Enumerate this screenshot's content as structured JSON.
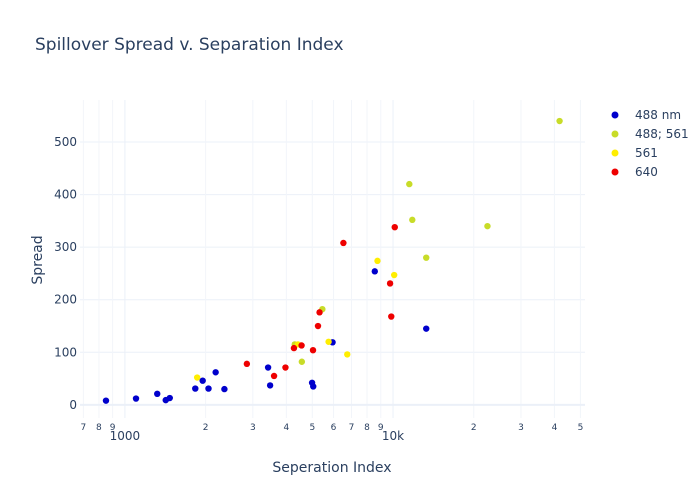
{
  "chart_data": {
    "type": "scatter",
    "title": "Spillover Spread v. Separation Index",
    "xlabel": "Seperation Index",
    "ylabel": "Spread",
    "x_scale": "log",
    "xlim": [
      680,
      52000
    ],
    "ylim": [
      -25,
      580
    ],
    "y_ticks": [
      0,
      100,
      200,
      300,
      400,
      500
    ],
    "x_major_ticks": [
      {
        "value": 1000,
        "label": "1000"
      },
      {
        "value": 10000,
        "label": "10k"
      }
    ],
    "x_minor_ticks": [
      {
        "value": 700,
        "label": "7"
      },
      {
        "value": 800,
        "label": "8"
      },
      {
        "value": 900,
        "label": "9"
      },
      {
        "value": 2000,
        "label": "2"
      },
      {
        "value": 3000,
        "label": "3"
      },
      {
        "value": 4000,
        "label": "4"
      },
      {
        "value": 5000,
        "label": "5"
      },
      {
        "value": 6000,
        "label": "6"
      },
      {
        "value": 7000,
        "label": "7"
      },
      {
        "value": 8000,
        "label": "8"
      },
      {
        "value": 9000,
        "label": "9"
      },
      {
        "value": 20000,
        "label": "2"
      },
      {
        "value": 30000,
        "label": "3"
      },
      {
        "value": 40000,
        "label": "4"
      },
      {
        "value": 50000,
        "label": "5"
      }
    ],
    "grid": true,
    "legend_position": "top-right",
    "series": [
      {
        "name": "488 nm",
        "color": "#0000cc",
        "points": [
          {
            "x": 850,
            "y": 8
          },
          {
            "x": 1100,
            "y": 12
          },
          {
            "x": 1320,
            "y": 21
          },
          {
            "x": 1420,
            "y": 9
          },
          {
            "x": 1470,
            "y": 13
          },
          {
            "x": 1830,
            "y": 31
          },
          {
            "x": 1950,
            "y": 46
          },
          {
            "x": 2050,
            "y": 31
          },
          {
            "x": 2180,
            "y": 62
          },
          {
            "x": 2350,
            "y": 30
          },
          {
            "x": 3420,
            "y": 71
          },
          {
            "x": 3480,
            "y": 37
          },
          {
            "x": 4990,
            "y": 42
          },
          {
            "x": 5040,
            "y": 35
          },
          {
            "x": 5950,
            "y": 119
          },
          {
            "x": 8550,
            "y": 254
          },
          {
            "x": 13300,
            "y": 145
          }
        ]
      },
      {
        "name": "488; 561",
        "color": "#c8dc28",
        "points": [
          {
            "x": 4300,
            "y": 115
          },
          {
            "x": 4570,
            "y": 82
          },
          {
            "x": 5450,
            "y": 182
          },
          {
            "x": 11500,
            "y": 420
          },
          {
            "x": 11800,
            "y": 352
          },
          {
            "x": 13300,
            "y": 280
          },
          {
            "x": 22500,
            "y": 340
          },
          {
            "x": 41800,
            "y": 540
          }
        ]
      },
      {
        "name": "561",
        "color": "#ffee00",
        "points": [
          {
            "x": 1860,
            "y": 52
          },
          {
            "x": 4420,
            "y": 115
          },
          {
            "x": 5750,
            "y": 120
          },
          {
            "x": 6750,
            "y": 96
          },
          {
            "x": 8750,
            "y": 274
          },
          {
            "x": 10100,
            "y": 247
          }
        ]
      },
      {
        "name": "640",
        "color": "#ee0000",
        "points": [
          {
            "x": 2850,
            "y": 78
          },
          {
            "x": 3600,
            "y": 55
          },
          {
            "x": 3970,
            "y": 71
          },
          {
            "x": 4270,
            "y": 108
          },
          {
            "x": 4560,
            "y": 113
          },
          {
            "x": 5030,
            "y": 104
          },
          {
            "x": 5250,
            "y": 150
          },
          {
            "x": 5320,
            "y": 176
          },
          {
            "x": 6530,
            "y": 308
          },
          {
            "x": 9750,
            "y": 231
          },
          {
            "x": 9850,
            "y": 168
          },
          {
            "x": 10150,
            "y": 338
          }
        ]
      }
    ]
  }
}
